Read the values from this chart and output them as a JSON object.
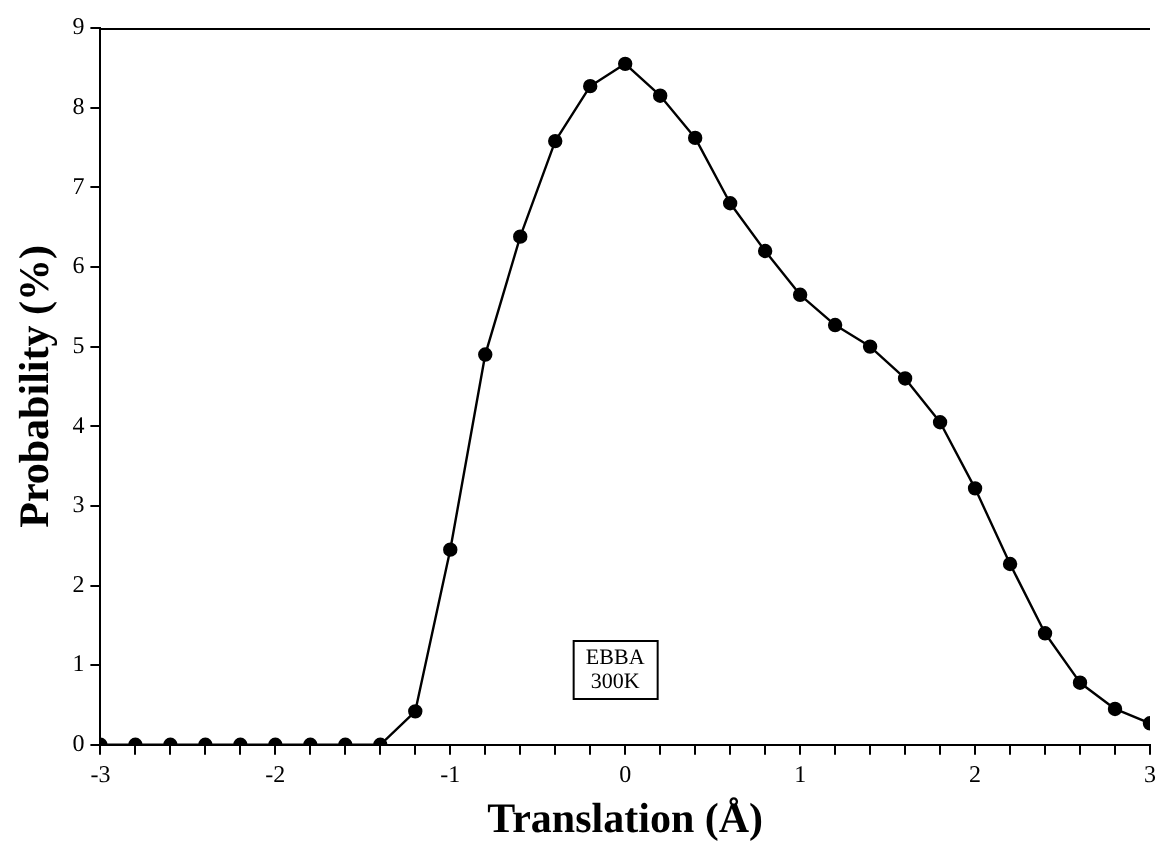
{
  "chart_data": {
    "type": "line",
    "xlabel": "Translation (Å)",
    "ylabel": "Probability (%)",
    "x": [
      -3,
      -2.8,
      -2.6,
      -2.4,
      -2.2,
      -2,
      -1.8,
      -1.6,
      -1.4,
      -1.2,
      -1,
      -0.8,
      -0.6,
      -0.4,
      -0.2,
      0,
      0.2,
      0.4,
      0.6,
      0.8,
      1,
      1.2,
      1.4,
      1.6,
      1.8,
      2,
      2.2,
      2.4,
      2.6,
      2.8,
      3
    ],
    "series": [
      {
        "color": "#000000",
        "values": [
          0,
          0,
          0,
          0,
          0,
          0,
          0,
          0,
          0,
          0.42,
          2.45,
          4.9,
          6.38,
          7.58,
          8.27,
          8.55,
          8.15,
          7.62,
          6.8,
          6.2,
          5.65,
          5.27,
          5.0,
          4.6,
          4.05,
          3.22,
          2.27,
          1.4,
          0.78,
          0.45,
          0.27
        ]
      }
    ],
    "xlim": [
      -3,
      3
    ],
    "xticks": [
      -3,
      {
        "value": -2.8,
        "label": null
      },
      {
        "value": -2.6,
        "label": null
      },
      {
        "value": -2.4,
        "label": null
      },
      {
        "value": -2.2,
        "label": null
      },
      -2,
      {
        "value": -1.8,
        "label": null
      },
      {
        "value": -1.6,
        "label": null
      },
      {
        "value": -1.4,
        "label": null
      },
      {
        "value": -1.2,
        "label": null
      },
      -1,
      {
        "value": -0.8,
        "label": null
      },
      {
        "value": -0.6,
        "label": null
      },
      {
        "value": -0.4,
        "label": null
      },
      {
        "value": -0.2,
        "label": null
      },
      0,
      {
        "value": 0.2,
        "label": null
      },
      {
        "value": 0.4,
        "label": null
      },
      {
        "value": 0.6,
        "label": null
      },
      {
        "value": 0.8,
        "label": null
      },
      1,
      {
        "value": 1.2,
        "label": null
      },
      {
        "value": 1.4,
        "label": null
      },
      {
        "value": 1.6,
        "label": null
      },
      {
        "value": 1.8,
        "label": null
      },
      2,
      {
        "value": 2.2,
        "label": null
      },
      {
        "value": 2.4,
        "label": null
      },
      {
        "value": 2.6,
        "label": null
      },
      {
        "value": 2.8,
        "label": null
      },
      3
    ],
    "ylim": [
      0,
      9
    ],
    "yticks": [
      0,
      1,
      2,
      3,
      4,
      5,
      6,
      7,
      8,
      9
    ],
    "annotations": [
      "EBBA\n300K"
    ],
    "marker": "circle",
    "line_style": "solid",
    "grid": false,
    "legend": false
  }
}
